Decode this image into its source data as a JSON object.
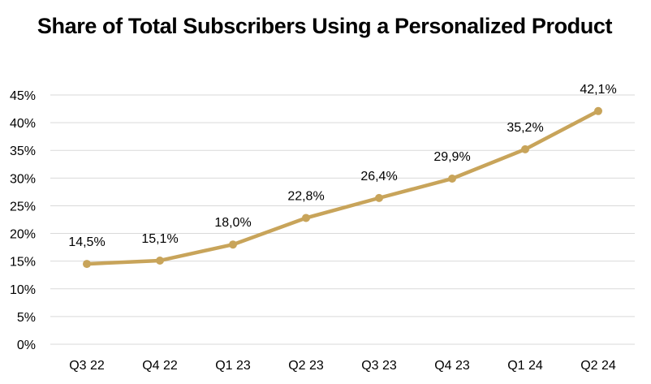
{
  "chart_data": {
    "type": "line",
    "title": "Share of Total Subscribers Using a Personalized Product",
    "xlabel": "",
    "ylabel": "",
    "categories": [
      "Q3 22",
      "Q4 22",
      "Q1 23",
      "Q2 23",
      "Q3 23",
      "Q4 23",
      "Q1 24",
      "Q2 24"
    ],
    "series": [
      {
        "name": "Share of Total Subscribers Using a Personalized Product",
        "values": [
          14.5,
          15.1,
          18.0,
          22.8,
          26.4,
          29.9,
          35.2,
          42.1
        ],
        "labels": [
          "14,5%",
          "15,1%",
          "18,0%",
          "22,8%",
          "26,4%",
          "29,9%",
          "35,2%",
          "42,1%"
        ],
        "color": "#C8A45A"
      }
    ],
    "ylim": [
      0,
      45
    ],
    "yticks": [
      0,
      5,
      10,
      15,
      20,
      25,
      30,
      35,
      40,
      45
    ],
    "ytick_labels": [
      "0%",
      "5%",
      "10%",
      "15%",
      "20%",
      "25%",
      "30%",
      "35%",
      "40%",
      "45%"
    ],
    "grid": true,
    "grid_color": "#D9D9D9",
    "legend": "none"
  }
}
